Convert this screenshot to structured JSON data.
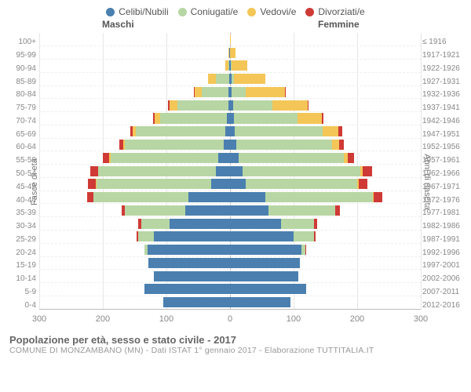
{
  "legend": [
    {
      "label": "Celibi/Nubili",
      "color": "#4a7fb0"
    },
    {
      "label": "Coniugati/e",
      "color": "#b7d6a3"
    },
    {
      "label": "Vedovi/e",
      "color": "#f3c657"
    },
    {
      "label": "Divorziati/e",
      "color": "#cf3a36"
    }
  ],
  "gender": {
    "male": "Maschi",
    "female": "Femmine"
  },
  "axis": {
    "left_title": "Fasce di età",
    "right_title": "Anni di nascita",
    "x_ticks": [
      300,
      200,
      100,
      0,
      100,
      200,
      300
    ],
    "x_max": 300
  },
  "footer": {
    "title": "Popolazione per età, sesso e stato civile - 2017",
    "subtitle": "COMUNE DI MONZAMBANO (MN) - Dati ISTAT 1° gennaio 2017 - Elaborazione TUTTITALIA.IT"
  },
  "age_labels": [
    "100+",
    "95-99",
    "90-94",
    "85-89",
    "80-84",
    "75-79",
    "70-74",
    "65-69",
    "60-64",
    "55-59",
    "50-54",
    "45-49",
    "40-44",
    "35-39",
    "30-34",
    "25-29",
    "20-24",
    "15-19",
    "10-14",
    "5-9",
    "0-4"
  ],
  "birth_labels": [
    "≤ 1916",
    "1917-1921",
    "1922-1926",
    "1927-1931",
    "1932-1936",
    "1937-1941",
    "1942-1946",
    "1947-1951",
    "1952-1956",
    "1957-1961",
    "1962-1966",
    "1967-1971",
    "1972-1976",
    "1977-1981",
    "1982-1986",
    "1987-1991",
    "1992-1996",
    "1997-2001",
    "2002-2006",
    "2007-2011",
    "2012-2016"
  ],
  "pyramid": [
    {
      "m": [
        0,
        0,
        0,
        0
      ],
      "f": [
        0,
        0,
        1,
        0
      ]
    },
    {
      "m": [
        1,
        0,
        2,
        0
      ],
      "f": [
        0,
        0,
        9,
        0
      ]
    },
    {
      "m": [
        1,
        2,
        5,
        0
      ],
      "f": [
        1,
        1,
        25,
        0
      ]
    },
    {
      "m": [
        1,
        21,
        12,
        0
      ],
      "f": [
        2,
        4,
        50,
        0
      ]
    },
    {
      "m": [
        2,
        42,
        12,
        1
      ],
      "f": [
        3,
        22,
        62,
        1
      ]
    },
    {
      "m": [
        3,
        80,
        12,
        2
      ],
      "f": [
        5,
        62,
        55,
        2
      ]
    },
    {
      "m": [
        5,
        105,
        8,
        3
      ],
      "f": [
        6,
        100,
        38,
        3
      ]
    },
    {
      "m": [
        8,
        140,
        5,
        4
      ],
      "f": [
        8,
        138,
        25,
        5
      ]
    },
    {
      "m": [
        10,
        155,
        3,
        6
      ],
      "f": [
        10,
        150,
        12,
        7
      ]
    },
    {
      "m": [
        18,
        170,
        2,
        10
      ],
      "f": [
        14,
        165,
        6,
        10
      ]
    },
    {
      "m": [
        22,
        185,
        1,
        12
      ],
      "f": [
        20,
        185,
        4,
        14
      ]
    },
    {
      "m": [
        30,
        180,
        1,
        12
      ],
      "f": [
        25,
        175,
        2,
        14
      ]
    },
    {
      "m": [
        65,
        150,
        0,
        10
      ],
      "f": [
        55,
        170,
        1,
        14
      ]
    },
    {
      "m": [
        70,
        95,
        0,
        6
      ],
      "f": [
        60,
        105,
        0,
        8
      ]
    },
    {
      "m": [
        95,
        45,
        0,
        4
      ],
      "f": [
        80,
        52,
        0,
        5
      ]
    },
    {
      "m": [
        120,
        25,
        0,
        2
      ],
      "f": [
        100,
        32,
        0,
        3
      ]
    },
    {
      "m": [
        130,
        4,
        0,
        0
      ],
      "f": [
        112,
        6,
        0,
        1
      ]
    },
    {
      "m": [
        128,
        0,
        0,
        0
      ],
      "f": [
        110,
        0,
        0,
        0
      ]
    },
    {
      "m": [
        120,
        0,
        0,
        0
      ],
      "f": [
        108,
        0,
        0,
        0
      ]
    },
    {
      "m": [
        135,
        0,
        0,
        0
      ],
      "f": [
        120,
        0,
        0,
        0
      ]
    },
    {
      "m": [
        105,
        0,
        0,
        0
      ],
      "f": [
        95,
        0,
        0,
        0
      ]
    }
  ],
  "colors": {
    "series": [
      "#4a7fb0",
      "#b7d6a3",
      "#f3c657",
      "#cf3a36"
    ],
    "bg": "#ffffff"
  }
}
